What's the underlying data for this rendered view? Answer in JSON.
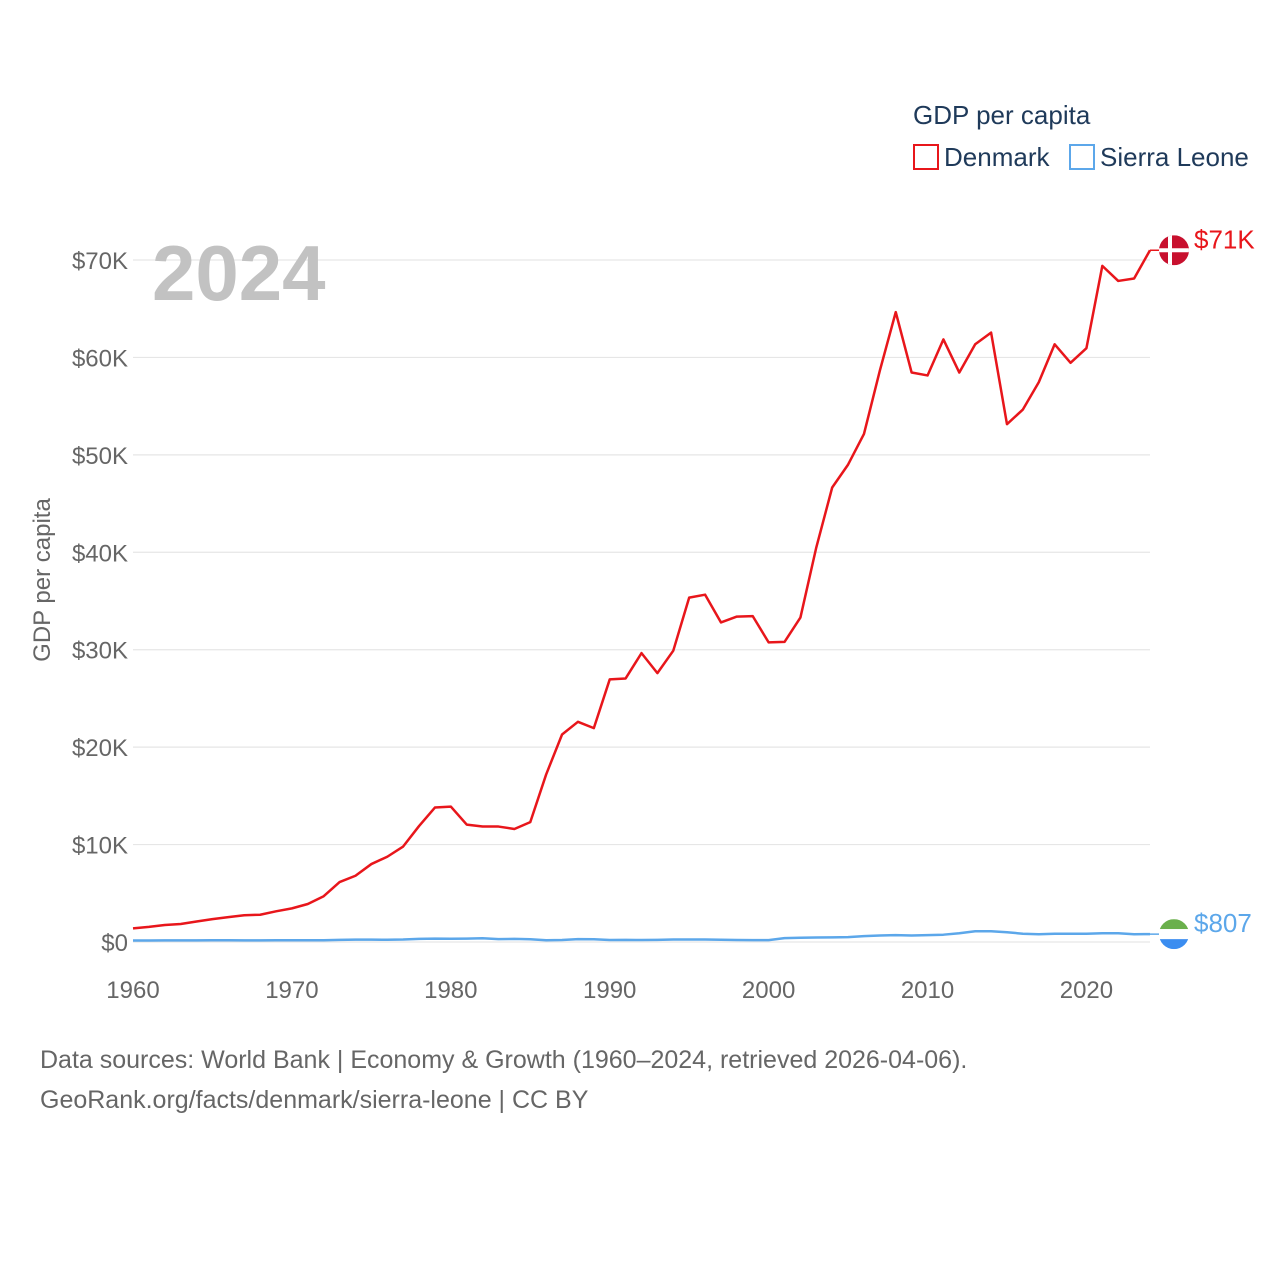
{
  "legend": {
    "title": "GDP per capita",
    "items": [
      "Denmark",
      "Sierra Leone"
    ]
  },
  "year_label": "2024",
  "colors": {
    "denmark": "#e8161b",
    "sierra_leone": "#5ca7ea",
    "grid": "#e6e6e6",
    "year": "#c2c2c2"
  },
  "end_labels": {
    "denmark": "$71K",
    "sierra_leone": "$807"
  },
  "source": {
    "line1": "Data sources: World Bank | Economy & Growth (1960–2024, retrieved 2026-04-06).",
    "line2": "GeoRank.org/facts/denmark/sierra-leone | CC BY"
  },
  "chart_data": {
    "type": "line",
    "title": "GDP per capita",
    "xlabel": "",
    "ylabel": "GDP per capita",
    "xlim": [
      1960,
      2024
    ],
    "ylim": [
      0,
      70000
    ],
    "x_ticks": [
      1960,
      1970,
      1980,
      1990,
      2000,
      2010,
      2020
    ],
    "x_tick_labels": [
      "1960",
      "1970",
      "1980",
      "1990",
      "2000",
      "2010",
      "2020"
    ],
    "y_ticks": [
      0,
      10000,
      20000,
      30000,
      40000,
      50000,
      60000,
      70000
    ],
    "y_tick_labels": [
      "$0",
      "$10K",
      "$20K",
      "$30K",
      "$40K",
      "$50K",
      "$60K",
      "$70K"
    ],
    "grid": true,
    "legend_position": "top-right",
    "x": [
      1960,
      1961,
      1962,
      1963,
      1964,
      1965,
      1966,
      1967,
      1968,
      1969,
      1970,
      1971,
      1972,
      1973,
      1974,
      1975,
      1976,
      1977,
      1978,
      1979,
      1980,
      1981,
      1982,
      1983,
      1984,
      1985,
      1986,
      1987,
      1988,
      1989,
      1990,
      1991,
      1992,
      1993,
      1994,
      1995,
      1996,
      1997,
      1998,
      1999,
      2000,
      2001,
      2002,
      2003,
      2004,
      2005,
      2006,
      2007,
      2008,
      2009,
      2010,
      2011,
      2012,
      2013,
      2014,
      2015,
      2016,
      2017,
      2018,
      2019,
      2020,
      2021,
      2022,
      2023,
      2024
    ],
    "series": [
      {
        "name": "Denmark",
        "values": [
          1400,
          1550,
          1750,
          1850,
          2100,
          2350,
          2550,
          2750,
          2800,
          3150,
          3450,
          3900,
          4700,
          6150,
          6800,
          8000,
          8750,
          9800,
          11900,
          13800,
          13900,
          12050,
          11850,
          11850,
          11600,
          12300,
          17200,
          21300,
          22600,
          21950,
          26950,
          27050,
          29650,
          27600,
          29900,
          35350,
          35650,
          32800,
          33400,
          33450,
          30750,
          30800,
          33300,
          40500,
          46650,
          49000,
          52150,
          58650,
          64650,
          58450,
          58150,
          61850,
          58450,
          61350,
          62550,
          53150,
          54650,
          57450,
          61350,
          59450,
          60950,
          69400,
          67850,
          68100,
          71000
        ]
      },
      {
        "name": "Sierra Leone",
        "values": [
          150,
          160,
          165,
          170,
          170,
          175,
          175,
          170,
          165,
          175,
          180,
          180,
          180,
          220,
          240,
          240,
          230,
          250,
          320,
          350,
          340,
          350,
          380,
          300,
          320,
          280,
          180,
          200,
          300,
          280,
          200,
          220,
          200,
          220,
          250,
          250,
          250,
          230,
          200,
          190,
          190,
          400,
          430,
          460,
          470,
          500,
          600,
          670,
          700,
          670,
          700,
          750,
          900,
          1100,
          1100,
          1000,
          850,
          800,
          850,
          850,
          850,
          900,
          900,
          800,
          807
        ]
      }
    ]
  }
}
